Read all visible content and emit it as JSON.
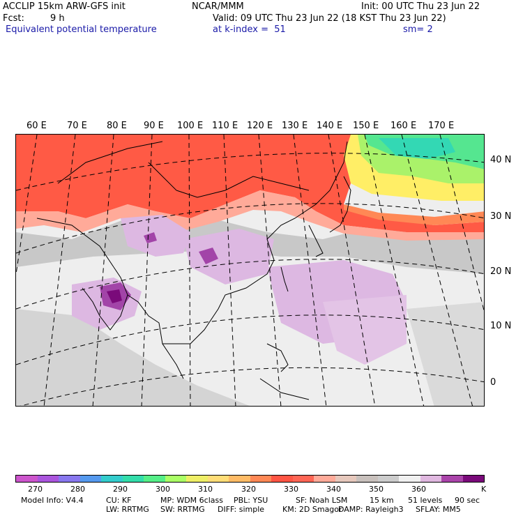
{
  "header": {
    "line1_left": "ACCLIP 15km ARW-GFS init",
    "line1_mid": "NCAR/MMM",
    "line1_right": "Init: 00 UTC Thu 23 Jun 22",
    "line2_left": "Fcst:",
    "line2_hours": "9 h",
    "line2_right": "Valid: 09 UTC Thu 23 Jun 22 (18 KST Thu 23 Jun 22)",
    "field": "Equivalent potential temperature",
    "level": "at k-index =  51",
    "smooth": "sm= 2"
  },
  "map": {
    "lon_labels": [
      "60 E",
      "70 E",
      "80 E",
      "90 E",
      "100 E",
      "110 E",
      "120 E",
      "130 E",
      "140 E",
      "150 E",
      "160 E",
      "170 E"
    ],
    "lat_labels": [
      "40 N",
      "30 N",
      "20 N",
      "10 N",
      "0"
    ]
  },
  "colorbar": {
    "colors": [
      "#cc55cc",
      "#aa55dd",
      "#8877ee",
      "#5599ee",
      "#33cccc",
      "#33ddaa",
      "#55ee88",
      "#aaff66",
      "#eeee66",
      "#ffdd77",
      "#ffbb66",
      "#ff8855",
      "#ff5544",
      "#ff6655",
      "#ffaa99",
      "#e6c8bc",
      "#c8c0bc",
      "#cccccc",
      "#f0f0f0",
      "#e0b8e0",
      "#aa44aa",
      "#7a0a7a"
    ],
    "ticks": [
      "270",
      "280",
      "290",
      "300",
      "310",
      "320",
      "330",
      "340",
      "350",
      "360"
    ],
    "unit": "K"
  },
  "footer": {
    "line1": [
      "Model Info: V4.4",
      "CU: KF",
      "MP: WDM 6class",
      "PBL: YSU",
      "SF: Noah LSM",
      "15 km",
      "51 levels",
      "90 sec"
    ],
    "line2": [
      "LW: RRTMG",
      "SW: RRTMG",
      "DIFF: simple",
      "KM: 2D Smagor",
      "DAMP: Rayleigh3",
      "SFLAY: MM5"
    ]
  }
}
